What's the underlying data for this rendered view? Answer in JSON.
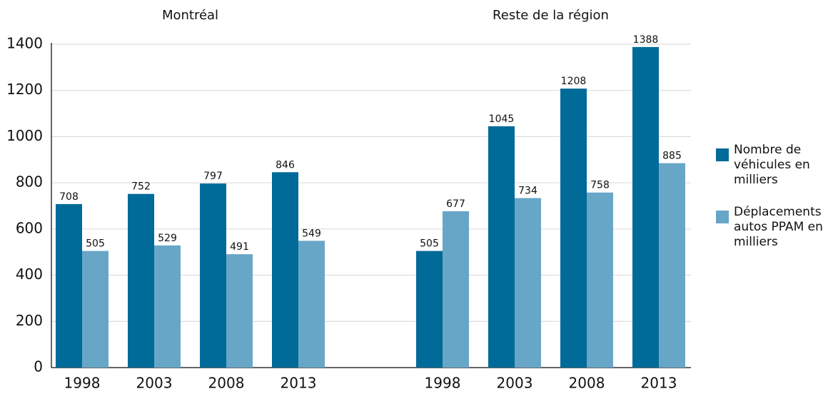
{
  "chart_data": {
    "type": "bar",
    "group_titles": [
      "Montréal",
      "Reste de la région"
    ],
    "categories": [
      [
        "1998",
        "2003",
        "2008",
        "2013"
      ],
      [
        "1998",
        "2003",
        "2008",
        "2013"
      ]
    ],
    "series": [
      {
        "name": "Nombre de véhicules en milliers",
        "color": "#006a99",
        "values": [
          [
            708,
            752,
            797,
            846
          ],
          [
            505,
            1045,
            1208,
            1388
          ]
        ]
      },
      {
        "name": "Déplacements autos PPAM en milliers",
        "color": "#68a6c8",
        "values": [
          [
            505,
            529,
            491,
            549
          ],
          [
            677,
            734,
            758,
            885
          ]
        ]
      }
    ],
    "ylim": [
      0,
      1400
    ],
    "yticks": [
      0,
      200,
      400,
      600,
      800,
      1000,
      1200,
      1400
    ],
    "grid": true,
    "legend": "right"
  }
}
